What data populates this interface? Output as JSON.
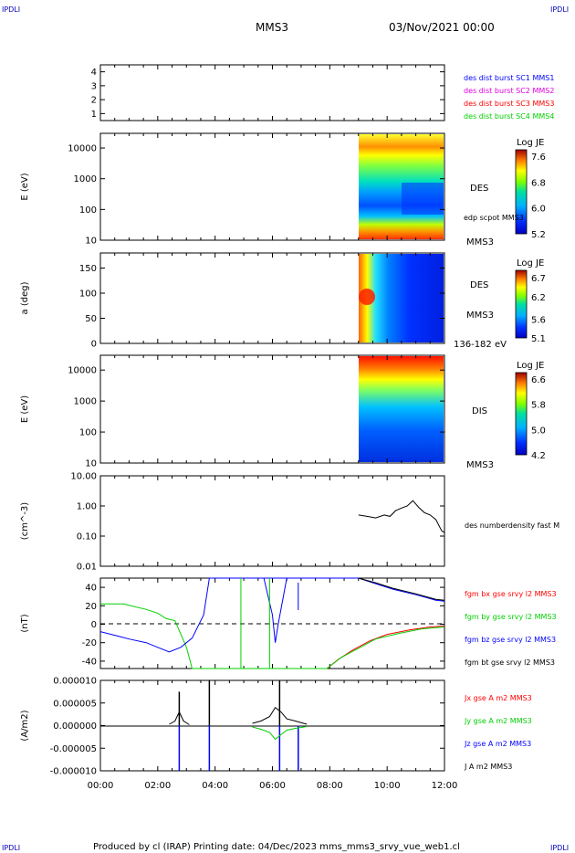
{
  "header": {
    "corner_tl": "IPDLI",
    "corner_tr": "IPDLI",
    "corner_bl": "IPDLI",
    "corner_br": "IPDLI",
    "spacecraft": "MMS3",
    "datetime": "03/Nov/2021 00:00"
  },
  "footer": {
    "text": "Produced by cl (IRAP)   Printing date: 04/Dec/2023   mms_mms3_srvy_vue_web1.cl"
  },
  "colors": {
    "blue": "#0000ff",
    "magenta": "#e000e0",
    "red": "#ff0000",
    "green": "#00d000",
    "black": "#000000"
  },
  "chart_data": [
    {
      "type": "scatter",
      "panel": "burst",
      "yticks": [
        "4",
        "3",
        "2",
        "1"
      ],
      "ylim": [
        0.5,
        4.5
      ],
      "legend": [
        {
          "name": "des dist burst SC1 MMS1",
          "color": "#0000ff"
        },
        {
          "name": "des dist burst SC2 MMS2",
          "color": "#e000e0"
        },
        {
          "name": "des dist burst SC3 MMS3",
          "color": "#ff0000"
        },
        {
          "name": "des dist burst SC4 MMS4",
          "color": "#00d000"
        }
      ]
    },
    {
      "type": "heatmap",
      "panel": "des-energy",
      "ylabel": "E (eV)",
      "yticks": [
        "10000",
        "1000",
        "100",
        "10"
      ],
      "ylim": [
        10,
        30000
      ],
      "yscale": "log",
      "data_start_hour": 9.0,
      "labels": [
        "DES",
        "edp scpot MMS3",
        "MMS3"
      ],
      "colorbar": {
        "title": "Log JE",
        "ticks": [
          "7.6",
          "6.8",
          "6.0",
          "5.2"
        ],
        "range": [
          5.2,
          7.8
        ]
      }
    },
    {
      "type": "heatmap",
      "panel": "des-pitch",
      "ylabel": "a (deg)",
      "yticks": [
        "150",
        "100",
        "50",
        "0"
      ],
      "ylim": [
        0,
        180
      ],
      "data_start_hour": 9.0,
      "labels": [
        "DES",
        "MMS3",
        "136-182 eV"
      ],
      "colorbar": {
        "title": "Log JE",
        "ticks": [
          "6.7",
          "6.2",
          "5.6",
          "5.1"
        ],
        "range": [
          5.1,
          6.9
        ]
      }
    },
    {
      "type": "heatmap",
      "panel": "dis-energy",
      "ylabel": "E (eV)",
      "yticks": [
        "10000",
        "1000",
        "100",
        "10"
      ],
      "ylim": [
        10,
        30000
      ],
      "yscale": "log",
      "data_start_hour": 9.0,
      "labels": [
        "DIS",
        "MMS3"
      ],
      "colorbar": {
        "title": "Log JE",
        "ticks": [
          "6.6",
          "5.8",
          "5.0",
          "4.2"
        ],
        "range": [
          4.2,
          6.8
        ]
      }
    },
    {
      "type": "line",
      "panel": "density",
      "ylabel": "(cm^-3)",
      "yscale": "log",
      "yticks": [
        "10.00",
        "1.00",
        "0.10",
        "0.01"
      ],
      "ylim": [
        0.01,
        10
      ],
      "series": [
        {
          "name": "des numberdensity fast M",
          "color": "#000000",
          "x": [
            9.0,
            9.3,
            9.6,
            9.9,
            10.1,
            10.3,
            10.5,
            10.7,
            10.9,
            11.1,
            11.3,
            11.5,
            11.7,
            11.9,
            12.0
          ],
          "y": [
            0.5,
            0.45,
            0.4,
            0.5,
            0.45,
            0.7,
            0.85,
            1.0,
            1.5,
            0.9,
            0.6,
            0.5,
            0.35,
            0.15,
            0.13
          ]
        }
      ]
    },
    {
      "type": "line",
      "panel": "fgm",
      "ylabel": "(nT)",
      "yticks": [
        "40",
        "20",
        "0",
        "-20",
        "-40"
      ],
      "ylim": [
        -48,
        50
      ],
      "series": [
        {
          "name": "fgm bx gse srvy l2 MMS3",
          "color": "#ff0000",
          "x": [
            7.9,
            8.3,
            8.8,
            9.4,
            10.0,
            10.8,
            11.5,
            12.0
          ],
          "y": [
            -48,
            -38,
            -28,
            -18,
            -11,
            -6,
            -3,
            -2
          ]
        },
        {
          "name": "fgm by gse srvy l2 MMS3",
          "color": "#00d000",
          "x": [
            0,
            0.8,
            1.6,
            2.0,
            2.3,
            2.6,
            3.0,
            3.2,
            7.9,
            8.4,
            9.0,
            9.6,
            10.4,
            11.2,
            12.0
          ],
          "y": [
            22,
            22,
            16,
            12,
            6,
            4,
            -25,
            -48,
            -48,
            -36,
            -26,
            -16,
            -10,
            -5,
            -3
          ]
        },
        {
          "name": "fgm bz gse srvy l2 MMS3",
          "color": "#0000ff",
          "x": [
            0,
            0.5,
            1.0,
            1.6,
            2.0,
            2.4,
            2.8,
            3.2,
            3.6,
            3.8,
            6.6,
            9.0,
            9.6,
            10.2,
            11.0,
            11.7,
            12.0
          ],
          "y": [
            -8,
            -12,
            -16,
            -20,
            -25,
            -30,
            -25,
            -15,
            10,
            50,
            50,
            50,
            44,
            38,
            32,
            26,
            25
          ]
        },
        {
          "name": "fgm bt gse srvy l2 MMS3",
          "color": "#000000",
          "x": [
            9.0,
            9.6,
            10.2,
            11.0,
            11.7,
            12.0
          ],
          "y": [
            50,
            45,
            39,
            33,
            27,
            26
          ]
        }
      ]
    },
    {
      "type": "line",
      "panel": "current",
      "ylabel": "(A/m2)",
      "yticks": [
        "0.000010",
        "0.000005",
        "0.000000",
        "-0.000005",
        "-0.000010"
      ],
      "ylim": [
        -1e-05,
        1e-05
      ],
      "xlabel": "",
      "xticks": [
        "00:00",
        "02:00",
        "04:00",
        "06:00",
        "08:00",
        "10:00",
        "12:00"
      ],
      "xlim": [
        0,
        12
      ],
      "series": [
        {
          "name": "Jx gse A m2 MMS3",
          "color": "#ff0000"
        },
        {
          "name": "Jy gse A m2 MMS3",
          "color": "#00d000"
        },
        {
          "name": "Jz gse A m2 MMS3",
          "color": "#0000ff",
          "x": [
            2.75,
            3.8,
            6.25,
            6.9
          ],
          "y": [
            -1e-05,
            -1e-05,
            -1e-05,
            -1e-05
          ]
        },
        {
          "name": "J A m2 MMS3",
          "color": "#000000",
          "x": [
            2.75,
            3.8,
            6.25
          ],
          "y": [
            7.5e-06,
            1e-05,
            1e-05
          ]
        }
      ]
    }
  ]
}
